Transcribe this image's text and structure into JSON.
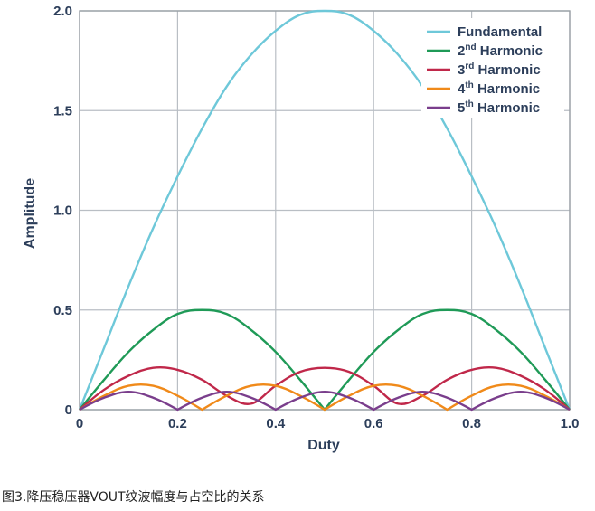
{
  "caption": "图3.降压稳压器VOUT纹波幅度与占空比的关系",
  "chart_data": {
    "type": "line",
    "xlabel": "Duty",
    "ylabel": "Amplitude",
    "xlim": [
      0,
      1
    ],
    "ylim": [
      0,
      2
    ],
    "grid": true,
    "legend_position": "top-right",
    "x_ticks": [
      "0",
      "0.2",
      "0.4",
      "0.6",
      "0.8",
      "1.0"
    ],
    "y_ticks": [
      "0",
      "0.5",
      "1.0",
      "1.5",
      "2.0"
    ],
    "x": [
      0,
      0.05,
      0.1,
      0.15,
      0.2,
      0.25,
      0.3,
      0.35,
      0.4,
      0.45,
      0.5,
      0.55,
      0.6,
      0.65,
      0.7,
      0.75,
      0.8,
      0.85,
      0.9,
      0.95,
      1.0
    ],
    "series": [
      {
        "name": "Fundamental",
        "label_base": "Fundamental",
        "label_sup": "",
        "color": "#6ec8d9",
        "values": [
          0,
          0.31,
          0.62,
          0.91,
          1.17,
          1.41,
          1.62,
          1.78,
          1.9,
          1.98,
          2.0,
          1.98,
          1.9,
          1.78,
          1.62,
          1.41,
          1.17,
          0.91,
          0.62,
          0.31,
          0
        ]
      },
      {
        "name": "2nd Harmonic",
        "label_base": "2",
        "label_sup": "nd",
        "label_rest": " Harmonic",
        "color": "#1f9a57",
        "values": [
          0,
          0.15,
          0.29,
          0.4,
          0.48,
          0.5,
          0.48,
          0.4,
          0.29,
          0.15,
          0,
          0.15,
          0.29,
          0.4,
          0.48,
          0.5,
          0.48,
          0.4,
          0.29,
          0.15,
          0
        ]
      },
      {
        "name": "3rd Harmonic",
        "label_base": "3",
        "label_sup": "rd",
        "label_rest": " Harmonic",
        "color": "#c0284a",
        "values": [
          0,
          0.1,
          0.17,
          0.21,
          0.2,
          0.15,
          0.07,
          0.03,
          0.12,
          0.19,
          0.21,
          0.19,
          0.12,
          0.03,
          0.07,
          0.15,
          0.2,
          0.21,
          0.17,
          0.1,
          0
        ]
      },
      {
        "name": "4th Harmonic",
        "label_base": "4",
        "label_sup": "th",
        "label_rest": " Harmonic",
        "color": "#f08a1a",
        "values": [
          0,
          0.07,
          0.12,
          0.12,
          0.07,
          0,
          0.07,
          0.12,
          0.12,
          0.07,
          0,
          0.07,
          0.12,
          0.12,
          0.07,
          0,
          0.07,
          0.12,
          0.12,
          0.07,
          0
        ]
      },
      {
        "name": "5th Harmonic",
        "label_base": "5",
        "label_sup": "th",
        "label_rest": " Harmonic",
        "color": "#7a3e8c",
        "values": [
          0,
          0.06,
          0.09,
          0.06,
          0,
          0.06,
          0.09,
          0.06,
          0,
          0.06,
          0.09,
          0.06,
          0,
          0.06,
          0.09,
          0.06,
          0,
          0.06,
          0.09,
          0.06,
          0
        ]
      }
    ]
  }
}
